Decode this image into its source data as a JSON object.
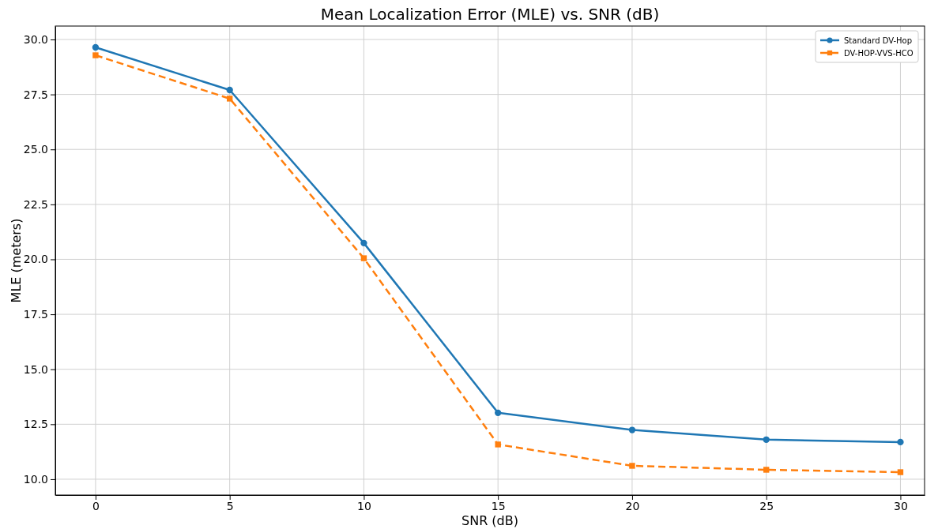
{
  "chart_data": {
    "type": "line",
    "title": "Mean Localization Error (MLE) vs. SNR (dB)",
    "xlabel": "SNR (dB)",
    "ylabel": "MLE (meters)",
    "x": [
      0,
      5,
      10,
      15,
      20,
      25,
      30
    ],
    "series": [
      {
        "name": "Standard DV-Hop",
        "color": "#1f77b4",
        "values": [
          29.64,
          27.7,
          20.74,
          13.02,
          12.24,
          11.8,
          11.69
        ],
        "marker": "circle",
        "line_style": "solid"
      },
      {
        "name": "DV-HOP-VVS-HCO",
        "color": "#ff7f0e",
        "values": [
          29.28,
          27.31,
          20.05,
          11.58,
          10.61,
          10.43,
          10.32
        ],
        "marker": "square",
        "line_style": "dashed"
      }
    ],
    "xlim": [
      -1.5,
      30.9
    ],
    "ylim": [
      9.28,
      30.61
    ],
    "xticks": [
      0,
      5,
      10,
      15,
      20,
      25,
      30
    ],
    "yticks": [
      {
        "value": 10,
        "label": "10.0"
      },
      {
        "value": 12.5,
        "label": "12.5"
      },
      {
        "value": 15,
        "label": "15.0"
      },
      {
        "value": 17.5,
        "label": "17.5"
      },
      {
        "value": 20,
        "label": "20.0"
      },
      {
        "value": 22.5,
        "label": "22.5"
      },
      {
        "value": 25,
        "label": "25.0"
      },
      {
        "value": 27.5,
        "label": "27.5"
      },
      {
        "value": 30,
        "label": "30.0"
      }
    ],
    "grid": true,
    "legend": "top right"
  }
}
